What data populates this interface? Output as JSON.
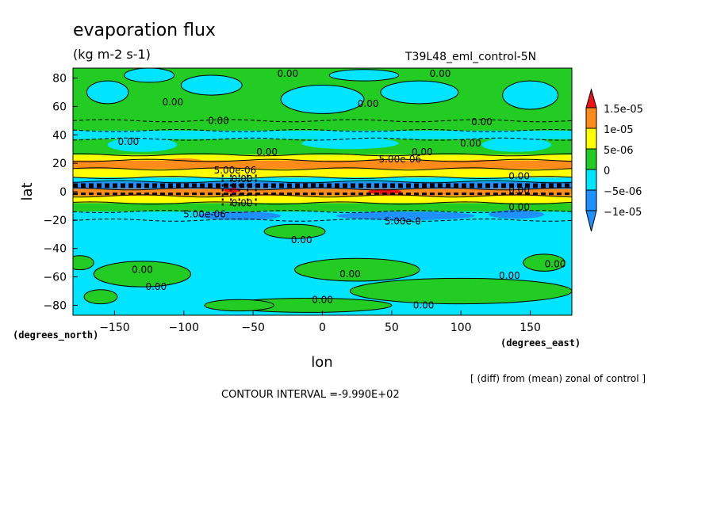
{
  "header": {
    "title": "evaporation flux",
    "units": "(kg m-2 s-1)",
    "dataset": "T39L48_eml_control-5N"
  },
  "footer": {
    "diff_note": "[ (diff) from (mean) zonal of control ]",
    "contour_interval": "CONTOUR INTERVAL =-9.990E+02"
  },
  "colors": {
    "band_neg_lo": "#1e90ff",
    "band_neg": "#00e5ff",
    "band_zero": "#22cc22",
    "band_pos": "#ffff00",
    "band_pos_hi": "#ff8c1a",
    "band_top": "#ee1111",
    "contour": "#000000"
  },
  "chart_data": {
    "type": "contour",
    "title": "evaporation flux",
    "units": "(kg m-2 s-1)",
    "xlabel": "lon",
    "ylabel": "lat",
    "x_unit_label": "(degrees_east)",
    "y_unit_label": "(degrees_north)",
    "xlim": [
      -180,
      180
    ],
    "ylim": [
      -87,
      87
    ],
    "xticks": [
      -150,
      -100,
      -50,
      0,
      50,
      100,
      150
    ],
    "yticks": [
      -80,
      -60,
      -40,
      -20,
      0,
      20,
      40,
      60,
      80
    ],
    "grid": false,
    "legend": {
      "placement": "right",
      "levels": [
        "1.5e-05",
        "1e-05",
        "5e-06",
        "0",
        "-5e-06",
        "-1e-05"
      ]
    },
    "latitude_bands": [
      {
        "lat_from": 87,
        "lat_to": 50,
        "level": "0",
        "note": "patchy"
      },
      {
        "lat_from": 50,
        "lat_to": 43,
        "level": "0"
      },
      {
        "lat_from": 43,
        "lat_to": 37,
        "level": "-5e-06"
      },
      {
        "lat_from": 37,
        "lat_to": 26,
        "level": "0"
      },
      {
        "lat_from": 26,
        "lat_to": 22,
        "level": "5e-06"
      },
      {
        "lat_from": 22,
        "lat_to": 16,
        "level": "1e-05"
      },
      {
        "lat_from": 16,
        "lat_to": 10,
        "level": "5e-06"
      },
      {
        "lat_from": 10,
        "lat_to": 7,
        "level": "-5e-06"
      },
      {
        "lat_from": 7,
        "lat_to": 2,
        "level": "-1e-05"
      },
      {
        "lat_from": 2,
        "lat_to": -3,
        "level": "1e-05"
      },
      {
        "lat_from": -3,
        "lat_to": -8,
        "level": "5e-06"
      },
      {
        "lat_from": -8,
        "lat_to": -14,
        "level": "0"
      },
      {
        "lat_from": -14,
        "lat_to": -20,
        "level": "-5e-06"
      },
      {
        "lat_from": -20,
        "lat_to": -87,
        "level": "-5e-06",
        "note": "patchy"
      }
    ],
    "contour_labels": [
      {
        "text": "0.00",
        "lon": -25,
        "lat": 83
      },
      {
        "text": "0.00",
        "lon": 85,
        "lat": 83
      },
      {
        "text": "0.00",
        "lon": -108,
        "lat": 63
      },
      {
        "text": "0.00",
        "lon": 33,
        "lat": 62
      },
      {
        "text": "0.00",
        "lon": -75,
        "lat": 50
      },
      {
        "text": "0.00",
        "lon": 115,
        "lat": 49
      },
      {
        "text": "0.00",
        "lon": -140,
        "lat": 35
      },
      {
        "text": "0.00",
        "lon": 107,
        "lat": 34
      },
      {
        "text": "0.00",
        "lon": -40,
        "lat": 28
      },
      {
        "text": "0.00",
        "lon": 72,
        "lat": 28
      },
      {
        "text": "5.00e-06",
        "lon": 56,
        "lat": 23
      },
      {
        "text": "5.00e-06",
        "lon": -63,
        "lat": 15
      },
      {
        "text": "0.00",
        "lon": -58,
        "lat": 9
      },
      {
        "text": "0.00",
        "lon": 142,
        "lat": 11
      },
      {
        "text": "0.00",
        "lon": 142,
        "lat": 1
      },
      {
        "text": "0.00",
        "lon": -58,
        "lat": -8
      },
      {
        "text": "0.00",
        "lon": 142,
        "lat": -11
      },
      {
        "text": "5.00e-06",
        "lon": -85,
        "lat": -16
      },
      {
        "text": "5.00e-0",
        "lon": 58,
        "lat": -21
      },
      {
        "text": "0.00",
        "lon": -15,
        "lat": -34
      },
      {
        "text": "0.00",
        "lon": -130,
        "lat": -55
      },
      {
        "text": "0.00",
        "lon": 20,
        "lat": -58
      },
      {
        "text": "0.00",
        "lon": 135,
        "lat": -59
      },
      {
        "text": "0.00",
        "lon": 168,
        "lat": -51
      },
      {
        "text": "0.00",
        "lon": -120,
        "lat": -67
      },
      {
        "text": "0.00",
        "lon": 0,
        "lat": -76
      },
      {
        "text": "0.00",
        "lon": 73,
        "lat": -80
      }
    ]
  }
}
